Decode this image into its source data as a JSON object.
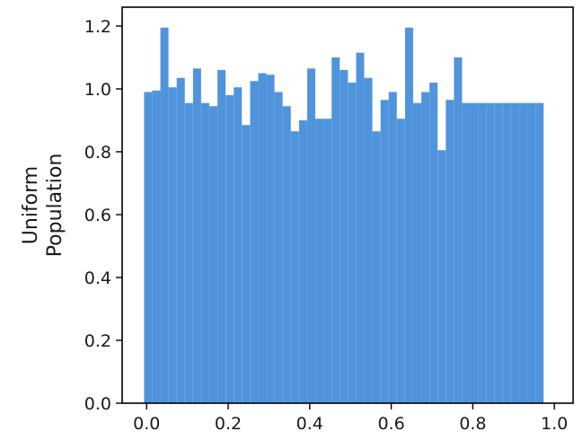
{
  "chart_data": {
    "type": "bar",
    "title": "",
    "xlabel": "",
    "ylabel_lines": [
      "Uniform",
      "Population"
    ],
    "xlim": [
      -0.06,
      1.046
    ],
    "ylim": [
      0,
      1.26
    ],
    "x_ticks": [
      0.0,
      0.2,
      0.4,
      0.6,
      0.8,
      1.0
    ],
    "x_tick_labels": [
      "0.0",
      "0.2",
      "0.4",
      "0.6",
      "0.8",
      "1.0"
    ],
    "y_ticks": [
      0.0,
      0.2,
      0.4,
      0.6,
      0.8,
      1.0,
      1.2
    ],
    "y_tick_labels": [
      "0.0",
      "0.2",
      "0.4",
      "0.6",
      "0.8",
      "1.0",
      "1.2"
    ],
    "bar_width": 0.0198,
    "grid": false,
    "bar_color": "#4f94dc",
    "x": [
      0.0037,
      0.0237,
      0.0437,
      0.0637,
      0.0837,
      0.1037,
      0.1237,
      0.1437,
      0.1637,
      0.1837,
      0.2037,
      0.2237,
      0.2437,
      0.2637,
      0.2837,
      0.3037,
      0.3237,
      0.3437,
      0.3637,
      0.3837,
      0.4037,
      0.4237,
      0.4437,
      0.4637,
      0.4837,
      0.5037,
      0.5237,
      0.5437,
      0.5637,
      0.5837,
      0.6037,
      0.6237,
      0.6437,
      0.6637,
      0.6837,
      0.7037,
      0.7237,
      0.7437,
      0.7637,
      0.7837,
      0.8037,
      0.8237,
      0.8437,
      0.8637,
      0.8837,
      0.9037,
      0.9237,
      0.9437,
      0.9637
    ],
    "values": [
      0.99,
      0.995,
      1.195,
      1.005,
      1.035,
      0.955,
      1.065,
      0.955,
      0.945,
      1.06,
      0.98,
      1.005,
      0.885,
      1.025,
      1.05,
      1.045,
      0.99,
      0.945,
      0.865,
      0.9,
      1.065,
      0.905,
      0.905,
      1.1,
      1.06,
      1.02,
      1.115,
      1.035,
      0.865,
      0.965,
      0.99,
      0.905,
      1.195,
      0.955,
      0.99,
      1.02,
      0.805,
      0.965,
      1.1,
      0.955,
      0.955,
      0.955,
      0.955,
      0.955,
      0.955,
      0.955,
      0.955,
      0.955,
      0.955
    ]
  }
}
